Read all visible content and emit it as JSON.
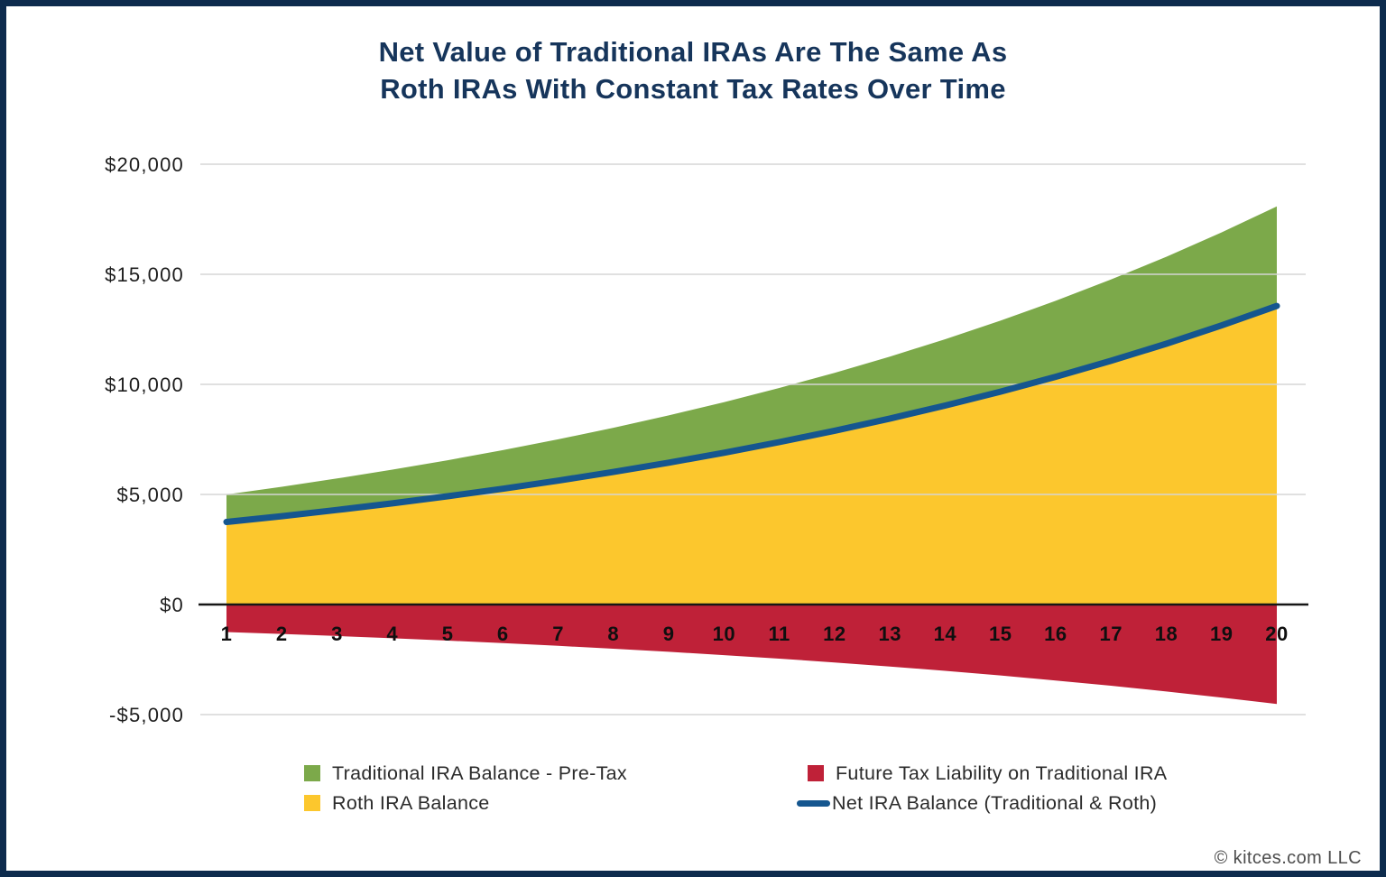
{
  "footer": {
    "copyright": "© kitces.com LLC"
  },
  "chart_data": {
    "type": "area",
    "title": "Net Value of Traditional IRAs Are The Same As Roth IRAs With Constant Tax Rates Over Time",
    "title_lines": [
      "Net Value of Traditional IRAs Are The Same As",
      "Roth IRAs With Constant Tax Rates Over Time"
    ],
    "x": [
      1,
      2,
      3,
      4,
      5,
      6,
      7,
      8,
      9,
      10,
      11,
      12,
      13,
      14,
      15,
      16,
      17,
      18,
      19,
      20
    ],
    "xlabel": "",
    "ylabel": "",
    "ylim": [
      -5000,
      20000
    ],
    "grid": true,
    "legend_position": "bottom",
    "yticks": [
      {
        "value": 20000,
        "label": "$20,000"
      },
      {
        "value": 15000,
        "label": "$15,000"
      },
      {
        "value": 10000,
        "label": "$10,000"
      },
      {
        "value": 5000,
        "label": "$5,000"
      },
      {
        "value": 0,
        "label": "$0"
      },
      {
        "value": -5000,
        "label": "-$5,000"
      }
    ],
    "series": [
      {
        "name": "Traditional IRA Balance - Pre-Tax",
        "kind": "area",
        "color": "#7CA94A",
        "values": [
          5000,
          5350,
          5725,
          6125,
          6554,
          7013,
          7504,
          8029,
          8591,
          9192,
          9836,
          10524,
          11261,
          12049,
          12893,
          13795,
          14761,
          15794,
          16900,
          18083
        ]
      },
      {
        "name": "Roth IRA Balance",
        "kind": "area",
        "color": "#FCC72D",
        "values": [
          3750,
          4013,
          4294,
          4594,
          4916,
          5260,
          5628,
          6022,
          6443,
          6894,
          7377,
          7893,
          8446,
          9037,
          9670,
          10346,
          11071,
          11846,
          12675,
          13562
        ]
      },
      {
        "name": "Future Tax Liability on Traditional IRA",
        "kind": "area",
        "color": "#BF2138",
        "values": [
          -1250,
          -1338,
          -1431,
          -1531,
          -1639,
          -1753,
          -1876,
          -2007,
          -2148,
          -2298,
          -2459,
          -2631,
          -2815,
          -3012,
          -3223,
          -3449,
          -3690,
          -3949,
          -4225,
          -4521
        ]
      },
      {
        "name": "Net IRA Balance (Traditional & Roth)",
        "kind": "line",
        "color": "#15568F",
        "values": [
          3750,
          4013,
          4294,
          4594,
          4916,
          5260,
          5628,
          6022,
          6443,
          6894,
          7377,
          7893,
          8446,
          9037,
          9670,
          10346,
          11071,
          11846,
          12675,
          13562
        ]
      }
    ],
    "colors": {
      "title": "#16355b",
      "frame_border": "#0d2b4d",
      "gridline": "#d5d5d5",
      "zero_axis": "#161616"
    }
  }
}
